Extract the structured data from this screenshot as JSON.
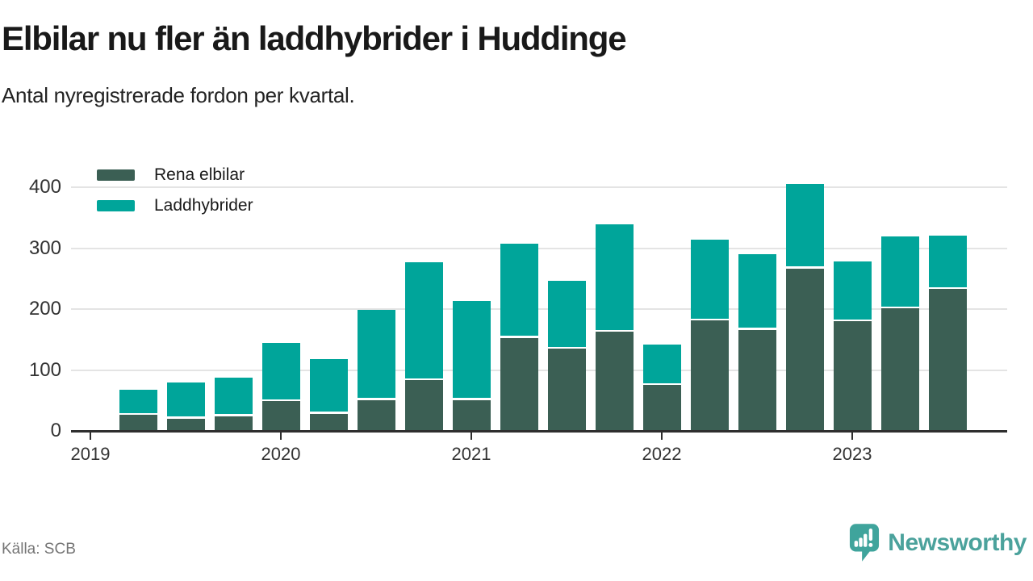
{
  "header": {
    "title": "Elbilar nu fler än laddhybrider i Huddinge",
    "subtitle": "Antal nyregistrerade fordon per kvartal."
  },
  "chart_data": {
    "type": "bar",
    "stacked": true,
    "title": "Elbilar nu fler än laddhybrider i Huddinge",
    "subtitle": "Antal nyregistrerade fordon per kvartal.",
    "x": [
      "2019 Q2",
      "2019 Q3",
      "2019 Q4",
      "2020 Q1",
      "2020 Q2",
      "2020 Q3",
      "2020 Q4",
      "2021 Q1",
      "2021 Q2",
      "2021 Q3",
      "2021 Q4",
      "2022 Q1",
      "2022 Q2",
      "2022 Q3",
      "2022 Q4",
      "2023 Q1",
      "2023 Q2",
      "2023 Q3"
    ],
    "series": [
      {
        "name": "Rena elbilar",
        "color": "#3b5f54",
        "values": [
          26,
          20,
          24,
          49,
          28,
          51,
          83,
          51,
          153,
          135,
          163,
          75,
          181,
          166,
          267,
          180,
          201,
          233
        ]
      },
      {
        "name": "Laddhybrider",
        "color": "#00a59a",
        "values": [
          42,
          60,
          64,
          95,
          90,
          148,
          194,
          162,
          154,
          111,
          176,
          67,
          133,
          124,
          139,
          98,
          119,
          88
        ]
      }
    ],
    "totals": [
      68,
      80,
      88,
      144,
      118,
      199,
      277,
      213,
      307,
      246,
      339,
      142,
      314,
      290,
      406,
      278,
      320,
      321
    ],
    "y_ticks": [
      0,
      100,
      200,
      300,
      400
    ],
    "x_ticks": [
      "2019",
      "2020",
      "2021",
      "2022",
      "2023"
    ],
    "ylim": [
      0,
      410
    ],
    "grid": "horizontal",
    "legend_position": "top-left",
    "axis_start_quarter": "2019 Q1"
  },
  "footer": {
    "source": "Källa: SCB",
    "brand": "Newsworthy"
  },
  "colors": {
    "bar_dark": "#3b5f54",
    "bar_teal": "#00a59a",
    "gridline": "#e4e4e4",
    "axis": "#2e2e2e",
    "title_text": "#191919",
    "axis_text": "#333333",
    "source_text": "#757575",
    "brand_teal": "#4ba29c"
  }
}
